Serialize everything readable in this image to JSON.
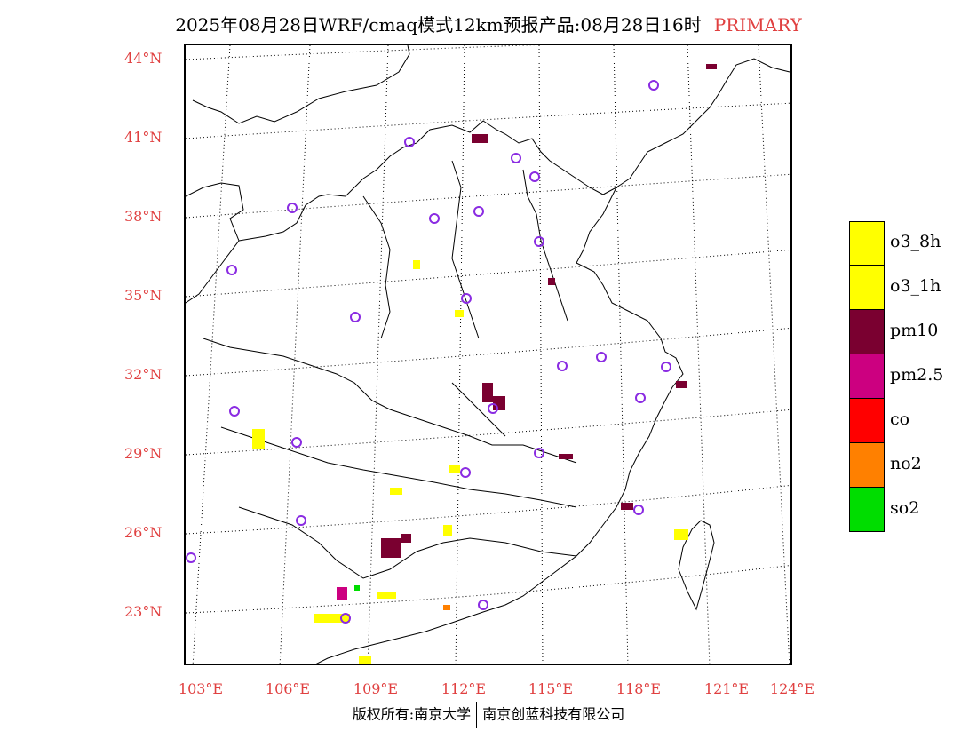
{
  "title": {
    "main": "2025年08月28日WRF/cmaq模式12km预报产品:08月28日16时",
    "tag": "PRIMARY"
  },
  "axes": {
    "lat_labels": [
      "44°N",
      "41°N",
      "38°N",
      "35°N",
      "32°N",
      "29°N",
      "26°N",
      "23°N"
    ],
    "lon_labels": [
      "103°E",
      "106°E",
      "109°E",
      "112°E",
      "115°E",
      "118°E",
      "121°E",
      "124°E"
    ]
  },
  "legend": {
    "items": [
      {
        "label": "o3_8h",
        "color": "#ffff00"
      },
      {
        "label": "o3_1h",
        "color": "#ffff00"
      },
      {
        "label": "pm10",
        "color": "#7a0030"
      },
      {
        "label": "pm2.5",
        "color": "#cc0080"
      },
      {
        "label": "co",
        "color": "#ff0000"
      },
      {
        "label": "no2",
        "color": "#ff8000"
      },
      {
        "label": "so2",
        "color": "#00dd00"
      }
    ]
  },
  "footer": {
    "left": "版权所有:南京大学",
    "right": "南京创蓝科技有限公司"
  },
  "colors": {
    "tick_label": "#e04040",
    "station_marker": "#8a2be2"
  }
}
